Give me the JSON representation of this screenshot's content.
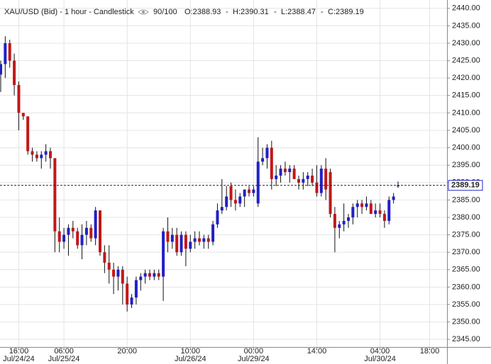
{
  "header": {
    "title": "XAU/USD (Bid) - 1 hour - Candlestick",
    "count": "90/100",
    "open": "O:2388.93",
    "high": "H:2390.31",
    "low": "L:2388.47",
    "close": "C:2389.19"
  },
  "chart_data": {
    "type": "candlestick",
    "categories": [
      null,
      null,
      null,
      null,
      "16:00",
      null,
      null,
      null,
      null,
      null,
      null,
      null,
      null,
      null,
      "06:00",
      null,
      null,
      null,
      null,
      null,
      null,
      null,
      null,
      null,
      null,
      null,
      null,
      null,
      "20:00",
      null,
      null,
      null,
      null,
      null,
      null,
      null,
      null,
      null,
      null,
      null,
      null,
      null,
      "10:00",
      null,
      null,
      null,
      null,
      null,
      null,
      null,
      null,
      null,
      null,
      null,
      null,
      null,
      "00:00",
      null,
      null,
      null,
      null,
      null,
      null,
      null,
      null,
      null,
      null,
      null,
      null,
      null,
      "14:00",
      null,
      null,
      null,
      null,
      null,
      null,
      null,
      null,
      null,
      null,
      null,
      null,
      null,
      "04:00",
      null,
      null,
      null,
      null,
      null,
      null,
      null,
      null,
      null,
      null,
      "18:00",
      null,
      null,
      null
    ],
    "category_dates": [
      null,
      null,
      null,
      null,
      "Jul/24/24",
      null,
      null,
      null,
      null,
      null,
      null,
      null,
      null,
      null,
      "Jul/25/24",
      null,
      null,
      null,
      null,
      null,
      null,
      null,
      null,
      null,
      null,
      null,
      null,
      null,
      null,
      null,
      null,
      null,
      null,
      null,
      null,
      null,
      null,
      null,
      null,
      null,
      null,
      null,
      "Jul/26/24",
      null,
      null,
      null,
      null,
      null,
      null,
      null,
      null,
      null,
      null,
      null,
      null,
      null,
      "Jul/29/24",
      null,
      null,
      null,
      null,
      null,
      null,
      null,
      null,
      null,
      null,
      null,
      null,
      null,
      null,
      null,
      null,
      null,
      null,
      null,
      null,
      null,
      null,
      null,
      null,
      null,
      null,
      null,
      "Jul/30/24",
      null,
      null,
      null,
      null,
      null,
      null,
      null,
      null,
      null,
      null,
      null,
      null,
      null,
      null
    ],
    "open": [
      2421,
      2424,
      2430,
      2425,
      2418,
      2410,
      2409,
      2399,
      2398,
      2397,
      2398,
      2399,
      2397,
      2376,
      2373,
      2375,
      2377,
      2376,
      2372,
      2375,
      2377,
      2374,
      2382,
      2370,
      2367,
      2365,
      2363,
      2365,
      2361,
      2355,
      2357,
      2362,
      2363,
      2364,
      2363,
      2364,
      2363,
      2376,
      2373,
      2375,
      2370,
      2375,
      2371,
      2373,
      2374,
      2373,
      2374,
      2373,
      2378,
      2382,
      2383,
      2389,
      2385,
      2384,
      2386,
      2388,
      2387,
      2384,
      2396,
      2397,
      2400,
      2391,
      2392,
      2394,
      2393,
      2394,
      2391,
      2390,
      2391,
      2392,
      2390,
      2387,
      2394,
      2393,
      2381,
      2377,
      2378,
      2379,
      2380,
      2383,
      2384,
      2383,
      2384,
      2381,
      2382,
      2381,
      2379,
      2385,
      2388.93,
      null,
      null,
      null,
      null,
      null,
      null,
      null,
      null,
      null,
      null
    ],
    "high": [
      2425,
      2432,
      2431,
      2427,
      2419,
      2410,
      2409,
      2400,
      2399,
      2399,
      2401,
      2400,
      2397,
      2380,
      2377,
      2378,
      2379,
      2377,
      2378,
      2379,
      2378,
      2383,
      2382,
      2372,
      2372,
      2367,
      2366,
      2366,
      2363,
      2358,
      2363,
      2364,
      2365,
      2365,
      2365,
      2365,
      2377,
      2380,
      2377,
      2377,
      2376,
      2376,
      2375,
      2376,
      2376,
      2375,
      2375,
      2379,
      2384,
      2391,
      2389,
      2390,
      2388,
      2387,
      2388,
      2389,
      2389,
      2403,
      2400,
      2401,
      2402,
      2395,
      2395,
      2396,
      2395,
      2395,
      2392,
      2393,
      2393,
      2394,
      2395,
      2395,
      2397,
      2394,
      2383,
      2379,
      2384,
      2381,
      2384,
      2385,
      2385,
      2386,
      2385,
      2384,
      2384,
      2382,
      2386,
      2387,
      2390.31,
      null,
      null,
      null,
      null,
      null,
      null,
      null,
      null,
      null,
      null
    ],
    "low": [
      2416,
      2420,
      2423,
      2415,
      2405,
      2408,
      2398,
      2396,
      2396,
      2394,
      2396,
      2394,
      2370,
      2370,
      2371,
      2369,
      2374,
      2371,
      2368,
      2372,
      2373,
      2372,
      2369,
      2364,
      2361,
      2358,
      2359,
      2355,
      2353,
      2354,
      2355,
      2359,
      2361,
      2362,
      2362,
      2362,
      2356,
      2370,
      2371,
      2369,
      2369,
      2366,
      2370,
      2371,
      2372,
      2371,
      2371,
      2372,
      2377,
      2381,
      2382,
      2383,
      2382,
      2383,
      2383,
      2386,
      2386,
      2383,
      2395,
      2394,
      2388,
      2389,
      2390,
      2392,
      2390,
      2391,
      2388,
      2388,
      2389,
      2389,
      2386,
      2386,
      2385,
      2380,
      2370,
      2374,
      2376,
      2377,
      2378,
      2380,
      2381,
      2382,
      2381,
      2380,
      2380,
      2377,
      2378,
      2384,
      2388.47,
      null,
      null,
      null,
      null,
      null,
      null,
      null,
      null,
      null,
      null
    ],
    "close": [
      2424,
      2430,
      2425,
      2418,
      2410,
      2409,
      2399,
      2398,
      2397,
      2398,
      2399,
      2397,
      2376,
      2373,
      2375,
      2377,
      2376,
      2372,
      2375,
      2377,
      2374,
      2382,
      2370,
      2367,
      2365,
      2363,
      2365,
      2361,
      2355,
      2357,
      2362,
      2363,
      2364,
      2363,
      2364,
      2363,
      2376,
      2373,
      2375,
      2370,
      2375,
      2371,
      2373,
      2374,
      2373,
      2374,
      2373,
      2378,
      2382,
      2383,
      2386,
      2385,
      2384,
      2386,
      2388,
      2387,
      2388,
      2396,
      2397,
      2400,
      2391,
      2392,
      2394,
      2393,
      2394,
      2391,
      2390,
      2391,
      2392,
      2390,
      2387,
      2394,
      2388,
      2381,
      2377,
      2378,
      2379,
      2380,
      2383,
      2384,
      2383,
      2384,
      2381,
      2382,
      2381,
      2379,
      2385,
      2386,
      2389.19,
      null,
      null,
      null,
      null,
      null,
      null,
      null,
      null,
      null,
      null
    ],
    "up_color": "#2020c8",
    "down_color": "#c01818",
    "wick_color": "#111111",
    "last_price": 2389.19,
    "last_price_label": "2389.19",
    "ylim": [
      2342.8,
      2442.4
    ],
    "yticks": [
      {
        "value": 2345,
        "label": "2345.00"
      },
      {
        "value": 2350,
        "label": "2350.00"
      },
      {
        "value": 2355,
        "label": "2355.00"
      },
      {
        "value": 2360,
        "label": "2360.00"
      },
      {
        "value": 2365,
        "label": "2365.00"
      },
      {
        "value": 2370,
        "label": "2370.00"
      },
      {
        "value": 2375,
        "label": "2375.00"
      },
      {
        "value": 2380,
        "label": "2380.00"
      },
      {
        "value": 2385,
        "label": "2385.00"
      },
      {
        "value": 2390,
        "label": "2390.00"
      },
      {
        "value": 2395,
        "label": "2395.00"
      },
      {
        "value": 2400,
        "label": "2400.00"
      },
      {
        "value": 2405,
        "label": "2405.00"
      },
      {
        "value": 2410,
        "label": "2410.00"
      },
      {
        "value": 2415,
        "label": "2415.00"
      },
      {
        "value": 2420,
        "label": "2420.00"
      },
      {
        "value": 2425,
        "label": "2425.00"
      },
      {
        "value": 2430,
        "label": "2430.00"
      },
      {
        "value": 2435,
        "label": "2435.00"
      },
      {
        "value": 2440,
        "label": "2440.00"
      }
    ],
    "grid": true
  }
}
